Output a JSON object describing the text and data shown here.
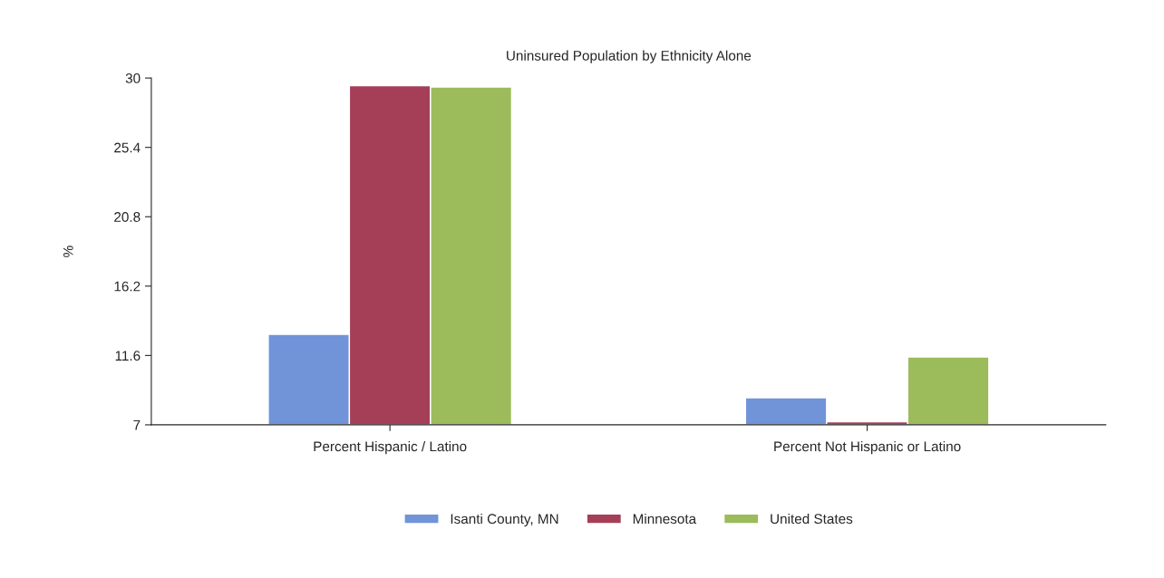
{
  "chart_data": {
    "type": "bar",
    "title": "Uninsured Population by Ethnicity Alone",
    "ylabel": "%",
    "categories": [
      "Percent Hispanic / Latino",
      "Percent Not Hispanic or Latino"
    ],
    "series": [
      {
        "name": "Isanti County, MN",
        "color": "#7193d8",
        "values": [
          13.0,
          8.8
        ]
      },
      {
        "name": "Minnesota",
        "color": "#a53f58",
        "values": [
          29.5,
          7.2
        ]
      },
      {
        "name": "United States",
        "color": "#9cbb5a",
        "values": [
          29.4,
          11.5
        ]
      }
    ],
    "ylim": [
      7,
      30
    ],
    "yticks": [
      7,
      11.6,
      16.2,
      20.8,
      25.4,
      30
    ],
    "grid": false,
    "legend": "bottom"
  }
}
